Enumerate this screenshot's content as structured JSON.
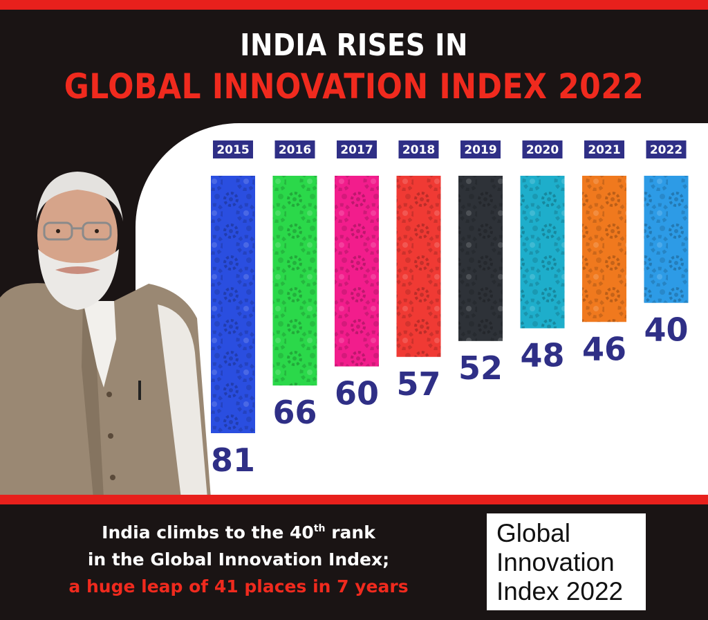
{
  "header": {
    "line1": "INDIA RISES IN",
    "line2": "GLOBAL INNOVATION INDEX 2022"
  },
  "chart_data": {
    "type": "bar",
    "categories": [
      "2015",
      "2016",
      "2017",
      "2018",
      "2019",
      "2020",
      "2021",
      "2022"
    ],
    "values": [
      81,
      66,
      60,
      57,
      52,
      48,
      46,
      40
    ],
    "colors": [
      "#2a4ee0",
      "#2bd84a",
      "#f21d8c",
      "#f03a34",
      "#2e3238",
      "#1eaecb",
      "#f0791e",
      "#2d9be6"
    ],
    "data_labels": [
      "81",
      "66",
      "60",
      "57",
      "52",
      "48",
      "46",
      "40"
    ],
    "grid": false,
    "legend": "none"
  },
  "caption": {
    "line1_before": "India climbs to the 40",
    "line1_sup": "th",
    "line1_after": " rank",
    "line2": "in the Global Innovation Index;",
    "line3": "a huge leap of 41 places in 7 years"
  },
  "logo": {
    "line1": "Global",
    "line2": "Innovation",
    "line3": "Index 2022"
  },
  "colors": {
    "background": "#1a1414",
    "accent_red": "#e8201c",
    "year_badge": "#2f2f86",
    "value_text": "#2f2f86"
  }
}
